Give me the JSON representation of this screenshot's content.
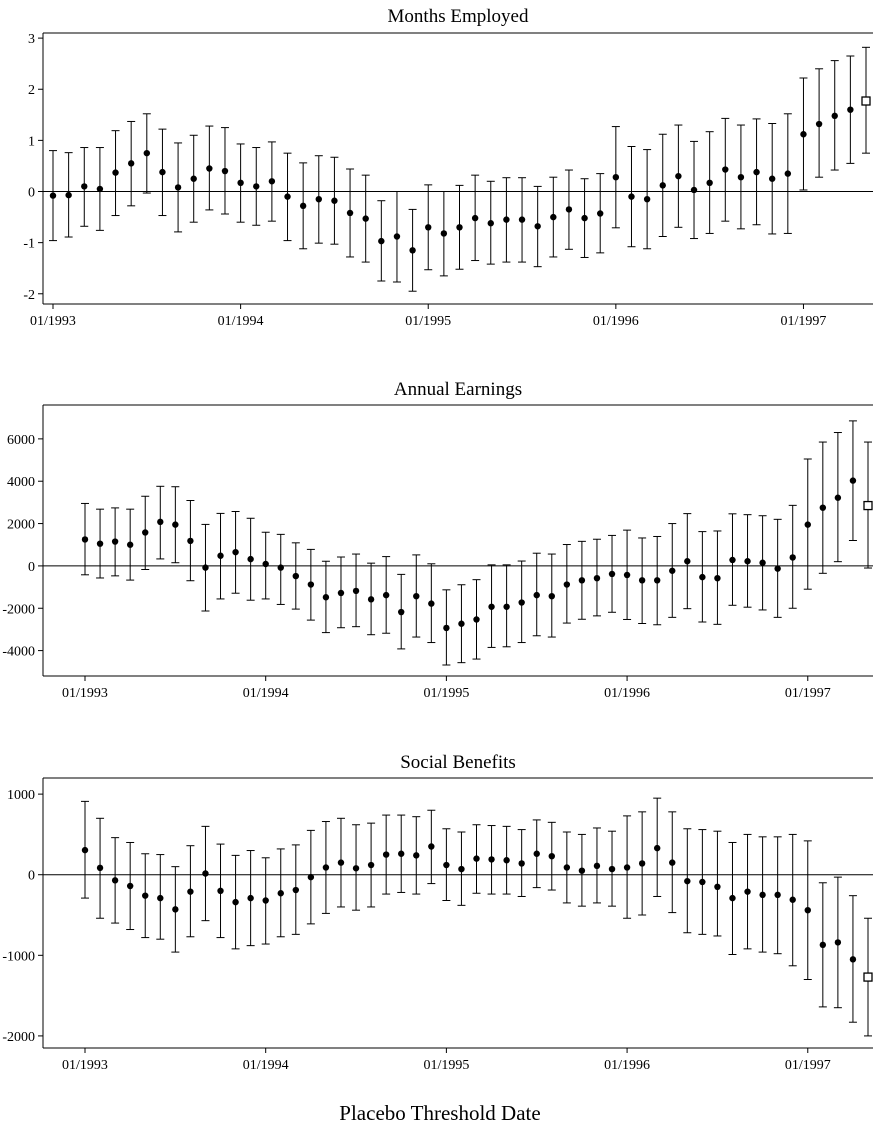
{
  "figure": {
    "xlabel": "Placebo Threshold Date"
  },
  "chart_data": [
    {
      "type": "scatter",
      "title": "Months Employed",
      "x": [
        "01/1993",
        "02/1993",
        "03/1993",
        "04/1993",
        "05/1993",
        "06/1993",
        "07/1993",
        "08/1993",
        "09/1993",
        "10/1993",
        "11/1993",
        "12/1993",
        "01/1994",
        "02/1994",
        "03/1994",
        "04/1994",
        "05/1994",
        "06/1994",
        "07/1994",
        "08/1994",
        "09/1994",
        "10/1994",
        "11/1994",
        "12/1994",
        "01/1995",
        "02/1995",
        "03/1995",
        "04/1995",
        "05/1995",
        "06/1995",
        "07/1995",
        "08/1995",
        "09/1995",
        "10/1995",
        "11/1995",
        "12/1995",
        "01/1996",
        "02/1996",
        "03/1996",
        "04/1996",
        "05/1996",
        "06/1996",
        "07/1996",
        "08/1996",
        "09/1996",
        "10/1996",
        "11/1996",
        "12/1996",
        "01/1997",
        "02/1997",
        "03/1997",
        "04/1997",
        "05/1997"
      ],
      "xticks": [
        "01/1993",
        "01/1994",
        "01/1995",
        "01/1996",
        "01/1997"
      ],
      "yticks": [
        -2,
        -1,
        0,
        1,
        2,
        3
      ],
      "ylim": [
        -2.2,
        3.1
      ],
      "estimate": [
        -0.08,
        -0.07,
        0.1,
        0.05,
        0.37,
        0.55,
        0.75,
        0.38,
        0.08,
        0.25,
        0.45,
        0.4,
        0.17,
        0.1,
        0.2,
        -0.1,
        -0.28,
        -0.15,
        -0.18,
        -0.42,
        -0.53,
        -0.97,
        -0.88,
        -1.15,
        -0.7,
        -0.82,
        -0.7,
        -0.52,
        -0.62,
        -0.55,
        -0.55,
        -0.68,
        -0.5,
        -0.35,
        -0.52,
        -0.43,
        0.28,
        -0.1,
        -0.15,
        0.12,
        0.3,
        0.03,
        0.17,
        0.43,
        0.28,
        0.38,
        0.25,
        0.35,
        1.12,
        1.32,
        1.48,
        1.6,
        1.77
      ],
      "ci_low": [
        -0.96,
        -0.89,
        -0.68,
        -0.76,
        -0.47,
        -0.28,
        -0.03,
        -0.47,
        -0.79,
        -0.6,
        -0.36,
        -0.44,
        -0.6,
        -0.66,
        -0.58,
        -0.96,
        -1.12,
        -1.01,
        -1.03,
        -1.28,
        -1.38,
        -1.75,
        -1.77,
        -1.95,
        -1.53,
        -1.65,
        -1.52,
        -1.35,
        -1.42,
        -1.38,
        -1.38,
        -1.47,
        -1.28,
        -1.13,
        -1.29,
        -1.2,
        -0.71,
        -1.08,
        -1.12,
        -0.88,
        -0.7,
        -0.92,
        -0.82,
        -0.58,
        -0.73,
        -0.65,
        -0.83,
        -0.82,
        0.03,
        0.28,
        0.42,
        0.55,
        0.75
      ],
      "ci_high": [
        0.8,
        0.76,
        0.86,
        0.86,
        1.19,
        1.37,
        1.52,
        1.22,
        0.95,
        1.1,
        1.28,
        1.25,
        0.93,
        0.86,
        0.97,
        0.75,
        0.56,
        0.7,
        0.67,
        0.44,
        0.32,
        -0.18,
        0.0,
        -0.35,
        0.13,
        0.0,
        0.12,
        0.32,
        0.2,
        0.27,
        0.27,
        0.1,
        0.28,
        0.42,
        0.25,
        0.35,
        1.27,
        0.88,
        0.82,
        1.12,
        1.3,
        0.98,
        1.17,
        1.43,
        1.3,
        1.42,
        1.33,
        1.52,
        2.22,
        2.4,
        2.56,
        2.65,
        2.82
      ],
      "last_point_marker": "hollow-square"
    },
    {
      "type": "scatter",
      "title": "Annual Earnings",
      "x": [
        "01/1993",
        "02/1993",
        "03/1993",
        "04/1993",
        "05/1993",
        "06/1993",
        "07/1993",
        "08/1993",
        "09/1993",
        "10/1993",
        "11/1993",
        "12/1993",
        "01/1994",
        "02/1994",
        "03/1994",
        "04/1994",
        "05/1994",
        "06/1994",
        "07/1994",
        "08/1994",
        "09/1994",
        "10/1994",
        "11/1994",
        "12/1994",
        "01/1995",
        "02/1995",
        "03/1995",
        "04/1995",
        "05/1995",
        "06/1995",
        "07/1995",
        "08/1995",
        "09/1995",
        "10/1995",
        "11/1995",
        "12/1995",
        "01/1996",
        "02/1996",
        "03/1996",
        "04/1996",
        "05/1996",
        "06/1996",
        "07/1996",
        "08/1996",
        "09/1996",
        "10/1996",
        "11/1996",
        "12/1996",
        "01/1997",
        "02/1997",
        "03/1997",
        "04/1997",
        "05/1997"
      ],
      "xticks": [
        "01/1993",
        "01/1994",
        "01/1995",
        "01/1996",
        "01/1997"
      ],
      "yticks": [
        -4000,
        -2000,
        0,
        2000,
        4000,
        6000
      ],
      "ylim": [
        -5200,
        7600
      ],
      "estimate": [
        1250,
        1050,
        1150,
        1000,
        1580,
        2080,
        1950,
        1180,
        -80,
        480,
        650,
        320,
        90,
        -80,
        -480,
        -880,
        -1480,
        -1280,
        -1180,
        -1580,
        -1380,
        -2180,
        -1430,
        -1780,
        -2930,
        -2730,
        -2530,
        -1930,
        -1930,
        -1730,
        -1380,
        -1430,
        -880,
        -680,
        -580,
        -380,
        -430,
        -680,
        -680,
        -230,
        220,
        -530,
        -580,
        280,
        220,
        150,
        -130,
        400,
        1950,
        2750,
        3220,
        4030,
        2850
      ],
      "ci_low": [
        -420,
        -570,
        -470,
        -670,
        -170,
        330,
        150,
        -700,
        -2130,
        -1560,
        -1290,
        -1620,
        -1560,
        -1820,
        -2040,
        -2560,
        -3150,
        -2920,
        -2870,
        -3250,
        -3180,
        -3920,
        -3360,
        -3620,
        -4680,
        -4570,
        -4400,
        -3850,
        -3820,
        -3620,
        -3300,
        -3360,
        -2700,
        -2520,
        -2360,
        -2190,
        -2530,
        -2720,
        -2780,
        -2430,
        -2020,
        -2650,
        -2760,
        -1860,
        -1950,
        -2080,
        -2430,
        -2000,
        -1100,
        -350,
        200,
        1200,
        -100
      ],
      "ci_high": [
        2950,
        2680,
        2740,
        2680,
        3290,
        3760,
        3740,
        3090,
        1960,
        2480,
        2570,
        2250,
        1590,
        1490,
        1090,
        780,
        220,
        420,
        560,
        130,
        440,
        -400,
        520,
        100,
        -1130,
        -890,
        -650,
        50,
        50,
        230,
        600,
        560,
        1010,
        1160,
        1260,
        1440,
        1690,
        1320,
        1390,
        2000,
        2470,
        1620,
        1650,
        2460,
        2420,
        2370,
        2200,
        2860,
        5050,
        5850,
        6300,
        6850,
        5850
      ],
      "last_point_marker": "hollow-square"
    },
    {
      "type": "scatter",
      "title": "Social Benefits",
      "x": [
        "01/1993",
        "02/1993",
        "03/1993",
        "04/1993",
        "05/1993",
        "06/1993",
        "07/1993",
        "08/1993",
        "09/1993",
        "10/1993",
        "11/1993",
        "12/1993",
        "01/1994",
        "02/1994",
        "03/1994",
        "04/1994",
        "05/1994",
        "06/1994",
        "07/1994",
        "08/1994",
        "09/1994",
        "10/1994",
        "11/1994",
        "12/1994",
        "01/1995",
        "02/1995",
        "03/1995",
        "04/1995",
        "05/1995",
        "06/1995",
        "07/1995",
        "08/1995",
        "09/1995",
        "10/1995",
        "11/1995",
        "12/1995",
        "01/1996",
        "02/1996",
        "03/1996",
        "04/1996",
        "05/1996",
        "06/1996",
        "07/1996",
        "08/1996",
        "09/1996",
        "10/1996",
        "11/1996",
        "12/1996",
        "01/1997",
        "02/1997",
        "03/1997",
        "04/1997",
        "05/1997"
      ],
      "xticks": [
        "01/1993",
        "01/1994",
        "01/1995",
        "01/1996",
        "01/1997"
      ],
      "yticks": [
        -2000,
        -1000,
        0,
        1000
      ],
      "ylim": [
        -2150,
        1200
      ],
      "estimate": [
        305,
        85,
        -70,
        -140,
        -260,
        -290,
        -430,
        -210,
        15,
        -200,
        -340,
        -290,
        -320,
        -230,
        -190,
        -30,
        90,
        150,
        80,
        120,
        250,
        260,
        240,
        350,
        120,
        70,
        200,
        190,
        180,
        140,
        260,
        230,
        90,
        50,
        110,
        70,
        90,
        140,
        330,
        150,
        -80,
        -90,
        -150,
        -290,
        -210,
        -250,
        -250,
        -310,
        -440,
        -870,
        -840,
        -1050,
        -1270
      ],
      "ci_low": [
        -290,
        -540,
        -600,
        -680,
        -780,
        -800,
        -960,
        -770,
        -570,
        -780,
        -920,
        -880,
        -860,
        -770,
        -740,
        -610,
        -480,
        -400,
        -440,
        -400,
        -240,
        -220,
        -240,
        -110,
        -320,
        -380,
        -230,
        -240,
        -240,
        -270,
        -160,
        -190,
        -350,
        -390,
        -350,
        -390,
        -540,
        -500,
        -270,
        -470,
        -720,
        -740,
        -760,
        -990,
        -920,
        -960,
        -980,
        -1130,
        -1300,
        -1640,
        -1650,
        -1830,
        -2000
      ],
      "ci_high": [
        910,
        700,
        460,
        400,
        260,
        250,
        100,
        360,
        600,
        380,
        240,
        300,
        210,
        320,
        370,
        550,
        660,
        700,
        620,
        640,
        740,
        740,
        720,
        800,
        570,
        530,
        620,
        610,
        600,
        560,
        680,
        650,
        530,
        500,
        580,
        540,
        730,
        780,
        950,
        780,
        570,
        560,
        540,
        400,
        500,
        470,
        470,
        500,
        420,
        -100,
        -30,
        -260,
        -540
      ],
      "last_point_marker": "hollow-square"
    }
  ]
}
